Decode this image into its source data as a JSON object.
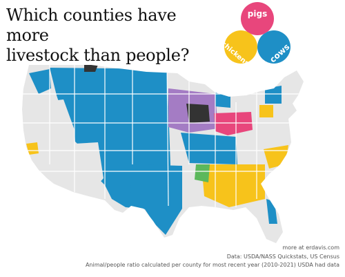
{
  "title": {
    "line1": "Which counties have more",
    "line2": "livestock than people?"
  },
  "legend": {
    "pigs": "pigs",
    "chickens": "chickens",
    "cows": "cows",
    "colors": {
      "pigs": "#e8467c",
      "chickens": "#f7c31b",
      "cows": "#1e8fc6",
      "pigs_chickens": "#f07a3c",
      "pigs_cows": "#a47cc4",
      "chickens_cows": "#5cb85c",
      "all_three": "#333333"
    }
  },
  "map": {
    "colors": {
      "land": "#e6e6e6",
      "borders": "#ffffff"
    }
  },
  "credits": {
    "site": "more at erdavis.com",
    "source": "Data: USDA/NASS Quickstats, US Census",
    "note": "Animal/people ratio calculated per county for most recent year (2010-2021) USDA had data"
  }
}
